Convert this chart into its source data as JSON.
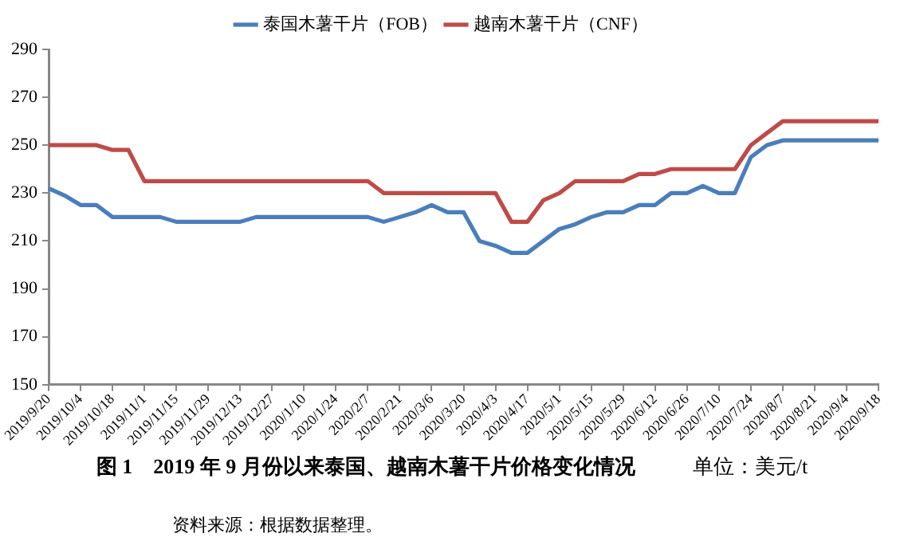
{
  "chart_data": {
    "type": "line",
    "title": "图 1　2019 年 9 月份以来泰国、越南木薯干片价格变化情况",
    "categories": [
      "2019/9/20",
      null,
      "2019/10/4",
      null,
      "2019/10/18",
      null,
      "2019/11/1",
      null,
      "2019/11/15",
      null,
      "2019/11/29",
      null,
      "2019/12/13",
      null,
      "2019/12/27",
      null,
      "2020/1/10",
      null,
      "2020/1/24",
      null,
      "2020/2/7",
      null,
      "2020/2/21",
      null,
      "2020/3/6",
      null,
      "2020/3/20",
      null,
      "2020/4/3",
      null,
      "2020/4/17",
      null,
      "2020/5/1",
      null,
      "2020/5/15",
      null,
      "2020/5/29",
      null,
      "2020/6/12",
      null,
      "2020/6/26",
      null,
      "2020/7/10",
      null,
      "2020/7/24",
      null,
      "2020/8/7",
      null,
      "2020/8/21",
      null,
      "2020/9/4",
      null,
      "2020/9/18"
    ],
    "series": [
      {
        "name": "泰国木薯干片（FOB）",
        "color": "#4a7ebb",
        "values": [
          232,
          229,
          225,
          225,
          220,
          220,
          220,
          220,
          218,
          218,
          218,
          218,
          218,
          220,
          220,
          220,
          220,
          220,
          220,
          220,
          220,
          218,
          220,
          222,
          225,
          222,
          222,
          210,
          208,
          205,
          205,
          210,
          215,
          217,
          220,
          222,
          222,
          225,
          225,
          230,
          230,
          233,
          230,
          230,
          245,
          250,
          252,
          252,
          252,
          252,
          252,
          252,
          252
        ]
      },
      {
        "name": "越南木薯干片（CNF）",
        "color": "#be4b48",
        "values": [
          250,
          250,
          250,
          250,
          248,
          248,
          235,
          235,
          235,
          235,
          235,
          235,
          235,
          235,
          235,
          235,
          235,
          235,
          235,
          235,
          235,
          230,
          230,
          230,
          230,
          230,
          230,
          230,
          230,
          218,
          218,
          227,
          230,
          235,
          235,
          235,
          235,
          238,
          238,
          240,
          240,
          240,
          240,
          240,
          250,
          255,
          260,
          260,
          260,
          260,
          260,
          260,
          260
        ]
      }
    ],
    "ylim": [
      150,
      290
    ],
    "yticks": [
      150,
      170,
      190,
      210,
      230,
      250,
      270,
      290
    ],
    "grid": false,
    "legend": "top",
    "marker": "none",
    "line_style": "solid",
    "annotations": [
      "单位：美元/t",
      "资料来源：根据数据整理。"
    ]
  }
}
